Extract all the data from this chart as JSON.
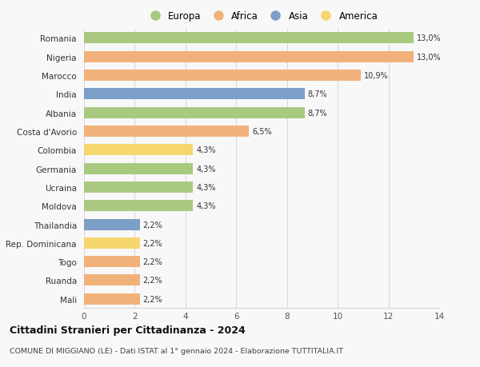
{
  "countries": [
    "Romania",
    "Nigeria",
    "Marocco",
    "India",
    "Albania",
    "Costa d'Avorio",
    "Colombia",
    "Germania",
    "Ucraina",
    "Moldova",
    "Thailandia",
    "Rep. Dominicana",
    "Togo",
    "Ruanda",
    "Mali"
  ],
  "values": [
    13.0,
    13.0,
    10.9,
    8.7,
    8.7,
    6.5,
    4.3,
    4.3,
    4.3,
    4.3,
    2.2,
    2.2,
    2.2,
    2.2,
    2.2
  ],
  "labels": [
    "13,0%",
    "13,0%",
    "10,9%",
    "8,7%",
    "8,7%",
    "6,5%",
    "4,3%",
    "4,3%",
    "4,3%",
    "4,3%",
    "2,2%",
    "2,2%",
    "2,2%",
    "2,2%",
    "2,2%"
  ],
  "continents": [
    "Europa",
    "Africa",
    "Africa",
    "Asia",
    "Europa",
    "Africa",
    "America",
    "Europa",
    "Europa",
    "Europa",
    "Asia",
    "America",
    "Africa",
    "Africa",
    "Africa"
  ],
  "colors": {
    "Europa": "#a8c97f",
    "Africa": "#f0b27a",
    "Asia": "#7b9fc7",
    "America": "#f5d76e"
  },
  "legend_order": [
    "Europa",
    "Africa",
    "Asia",
    "America"
  ],
  "xlim": [
    0,
    14
  ],
  "xticks": [
    0,
    2,
    4,
    6,
    8,
    10,
    12,
    14
  ],
  "title": "Cittadini Stranieri per Cittadinanza - 2024",
  "subtitle": "COMUNE DI MIGGIANO (LE) - Dati ISTAT al 1° gennaio 2024 - Elaborazione TUTTITALIA.IT",
  "background_color": "#f8f8f8",
  "grid_color": "#d8d8d8"
}
